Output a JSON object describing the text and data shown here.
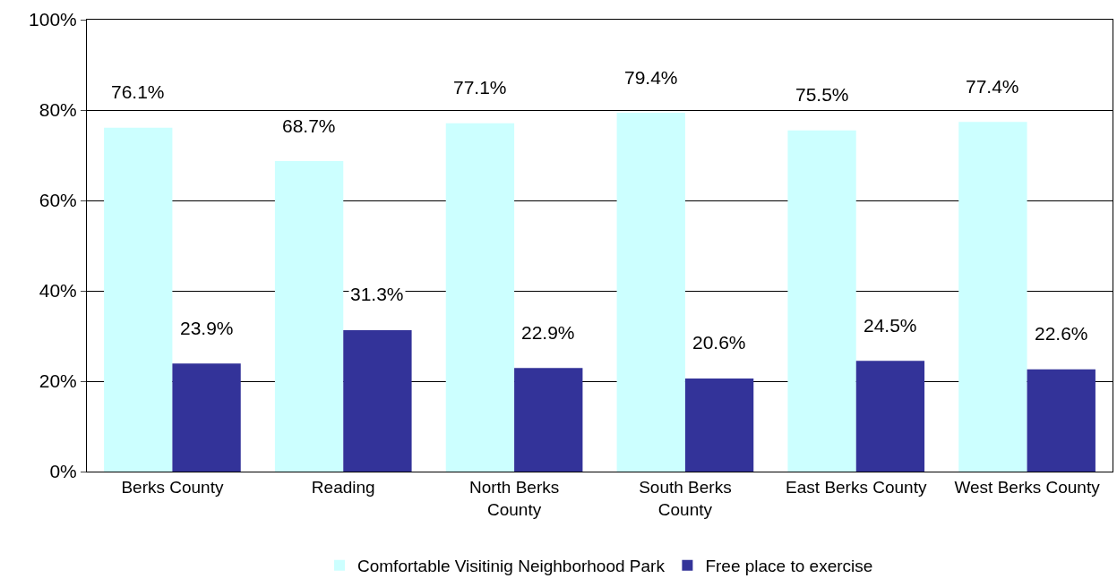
{
  "chart_data": {
    "type": "bar",
    "categories": [
      "Berks County",
      "Reading",
      "North Berks County",
      "South Berks County",
      "East Berks County",
      "West Berks County"
    ],
    "series": [
      {
        "name": "Comfortable Visitinig Neighborhood Park",
        "color": "#ccffff",
        "values": [
          76.1,
          68.7,
          77.1,
          79.4,
          75.5,
          77.4
        ],
        "value_labels": [
          "76.1%",
          "68.7%",
          "77.1%",
          "79.4%",
          "75.5%",
          "77.4%"
        ]
      },
      {
        "name": "Free place to exercise",
        "color": "#333399",
        "values": [
          23.9,
          31.3,
          22.9,
          20.6,
          24.5,
          22.6
        ],
        "value_labels": [
          "23.9%",
          "31.3%",
          "22.9%",
          "20.6%",
          "24.5%",
          "22.6%"
        ]
      }
    ],
    "ylim": [
      0,
      100
    ],
    "yticks": [
      {
        "value": 0,
        "label": "0%"
      },
      {
        "value": 20,
        "label": "20%"
      },
      {
        "value": 40,
        "label": "40%"
      },
      {
        "value": 60,
        "label": "60%"
      },
      {
        "value": 80,
        "label": "80%"
      },
      {
        "value": 100,
        "label": "100%"
      }
    ],
    "grid": "y",
    "legend": "bottom"
  }
}
